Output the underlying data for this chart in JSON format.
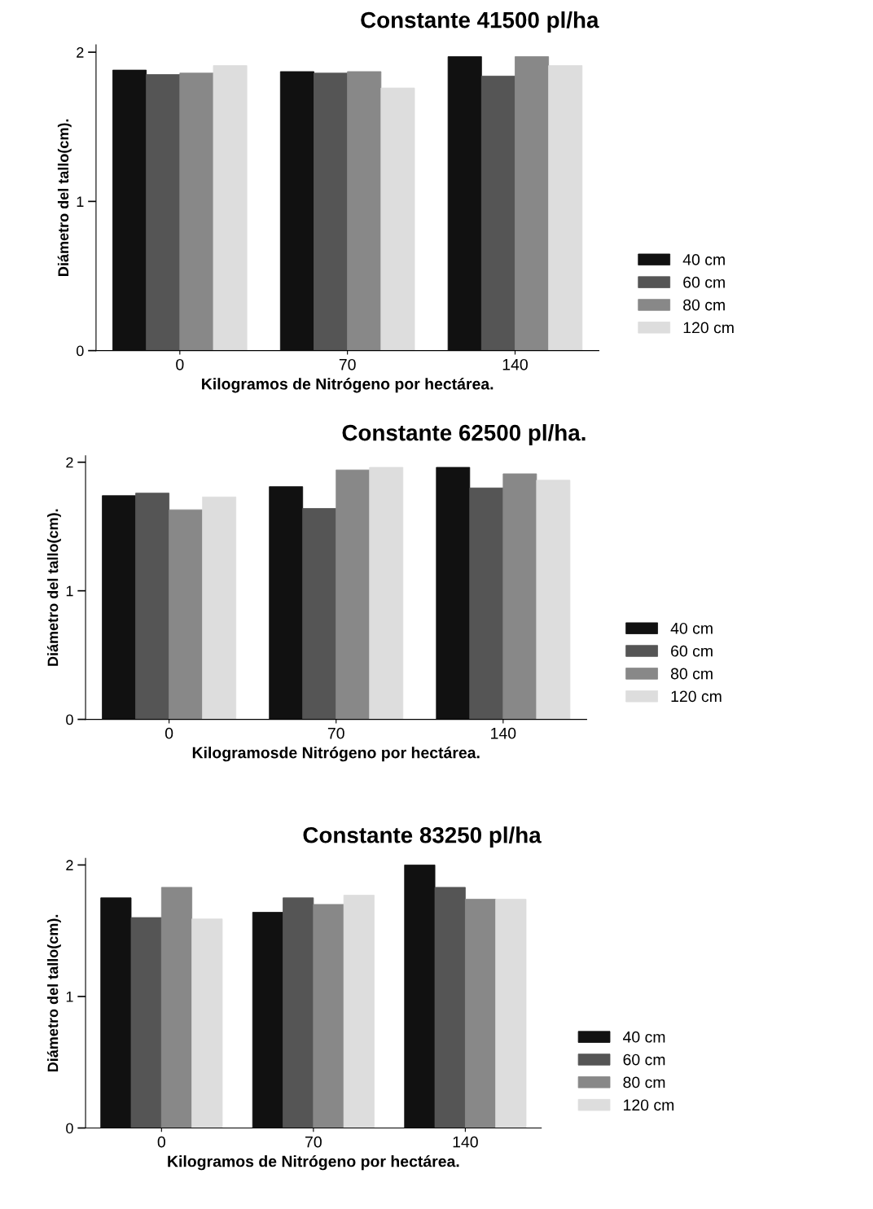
{
  "chart_data": [
    {
      "type": "bar",
      "title": "Constante 41500 pl/ha",
      "xlabel": "Kilogramos de Nitrógeno por hectárea.",
      "ylabel": "Diámetro del tallo(cm).",
      "categories": [
        "0",
        "70",
        "140"
      ],
      "ylim": [
        0,
        2.05
      ],
      "yticks": [
        0,
        1,
        2
      ],
      "legend": "right",
      "grid": false,
      "series": [
        {
          "name": "40 cm",
          "color": "#111111",
          "values": [
            1.88,
            1.87,
            1.97
          ]
        },
        {
          "name": "60 cm",
          "color": "#555555",
          "values": [
            1.85,
            1.86,
            1.84
          ]
        },
        {
          "name": "80 cm",
          "color": "#888888",
          "values": [
            1.86,
            1.87,
            1.97
          ]
        },
        {
          "name": "120 cm",
          "color": "#dddddd",
          "values": [
            1.91,
            1.76,
            1.91
          ]
        }
      ]
    },
    {
      "type": "bar",
      "title": "Constante 62500 pl/ha.",
      "xlabel": "Kilogramosde Nitrógeno por hectárea.",
      "ylabel": "Diámetro del tallo(cm).",
      "categories": [
        "0",
        "70",
        "140"
      ],
      "ylim": [
        0,
        2.05
      ],
      "yticks": [
        0,
        1,
        2
      ],
      "legend": "right",
      "grid": false,
      "series": [
        {
          "name": "40 cm",
          "color": "#111111",
          "values": [
            1.74,
            1.81,
            1.96
          ]
        },
        {
          "name": "60 cm",
          "color": "#555555",
          "values": [
            1.76,
            1.64,
            1.8
          ]
        },
        {
          "name": "80 cm",
          "color": "#888888",
          "values": [
            1.63,
            1.94,
            1.91
          ]
        },
        {
          "name": "120 cm",
          "color": "#dddddd",
          "values": [
            1.73,
            1.96,
            1.86
          ]
        }
      ]
    },
    {
      "type": "bar",
      "title": "Constante 83250 pl/ha",
      "xlabel": "Kilogramos de Nitrógeno por hectárea.",
      "ylabel": "Diámetro del tallo(cm).",
      "categories": [
        "0",
        "70",
        "140"
      ],
      "ylim": [
        0,
        2.05
      ],
      "yticks": [
        0,
        1,
        2
      ],
      "legend": "right",
      "grid": false,
      "series": [
        {
          "name": "40 cm",
          "color": "#111111",
          "values": [
            1.75,
            1.64,
            2.0
          ]
        },
        {
          "name": "60 cm",
          "color": "#555555",
          "values": [
            1.6,
            1.75,
            1.83
          ]
        },
        {
          "name": "80 cm",
          "color": "#888888",
          "values": [
            1.83,
            1.7,
            1.74
          ]
        },
        {
          "name": "120 cm",
          "color": "#dddddd",
          "values": [
            1.59,
            1.77,
            1.74
          ]
        }
      ]
    }
  ]
}
